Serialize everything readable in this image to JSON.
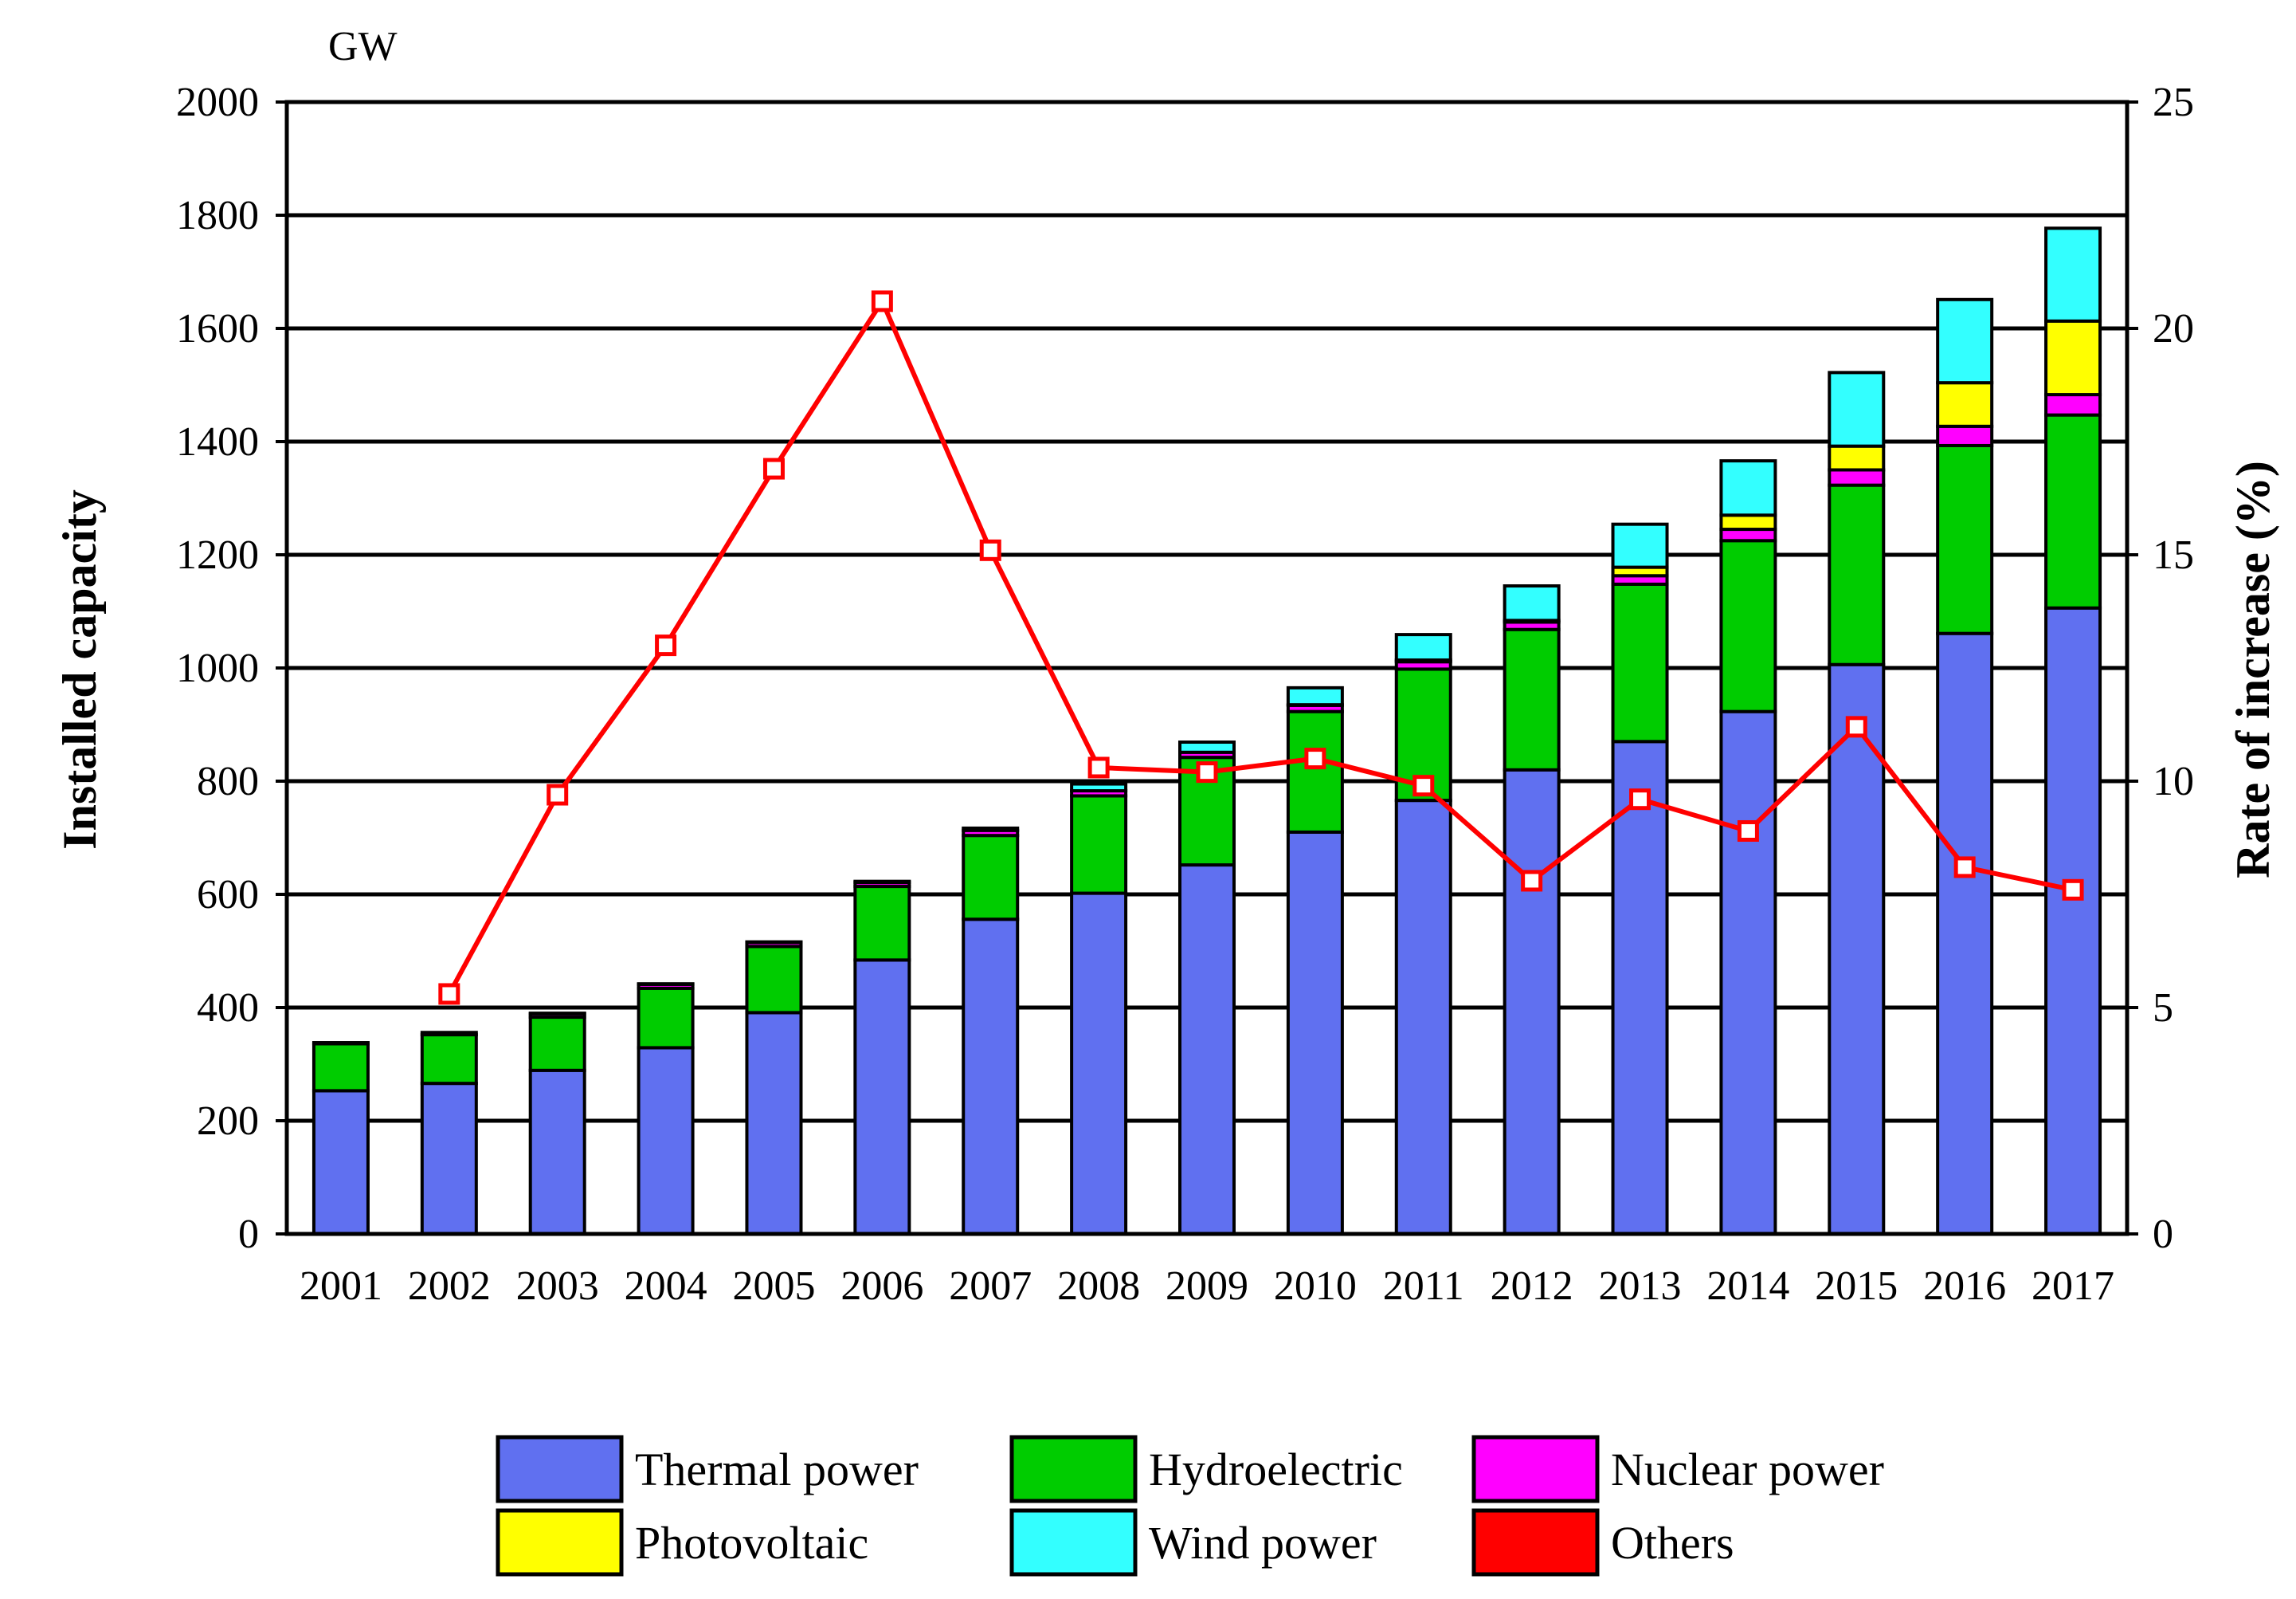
{
  "chart_data": {
    "type": "bar",
    "stacked": true,
    "unit_label": "GW",
    "ylabel": "Installed capacity",
    "y2label": "Rate of increase (%)",
    "ylim": [
      0,
      2000
    ],
    "y_ticks": [
      0,
      200,
      400,
      600,
      800,
      1000,
      1200,
      1400,
      1600,
      1800,
      2000
    ],
    "y2lim": [
      0,
      25
    ],
    "y2_ticks": [
      0,
      5,
      10,
      15,
      20,
      25
    ],
    "grid": true,
    "legend_position": "bottom",
    "categories": [
      "2001",
      "2002",
      "2003",
      "2004",
      "2005",
      "2006",
      "2007",
      "2008",
      "2009",
      "2010",
      "2011",
      "2012",
      "2013",
      "2014",
      "2015",
      "2016",
      "2017"
    ],
    "series": [
      {
        "name": "Thermal power",
        "color": "#6070F0",
        "values": [
          253,
          266,
          289,
          329,
          391,
          484,
          556,
          602,
          652,
          710,
          766,
          820,
          870,
          923,
          1006,
          1061,
          1106
        ]
      },
      {
        "name": "Hydroelectric",
        "color": "#00CC00",
        "values": [
          83,
          86,
          94,
          105,
          117,
          130,
          148,
          172,
          190,
          213,
          232,
          248,
          278,
          302,
          317,
          332,
          341
        ]
      },
      {
        "name": "Nuclear power",
        "color": "#FF00FF",
        "values": [
          2,
          4,
          6,
          7,
          7,
          7,
          9,
          9,
          9,
          11,
          13,
          13,
          15,
          20,
          27,
          34,
          36
        ]
      },
      {
        "name": "Photovoltaic",
        "color": "#FFFF00",
        "values": [
          0,
          0,
          0,
          0,
          0,
          0,
          0,
          0,
          0,
          1,
          3,
          3,
          15,
          25,
          42,
          77,
          130
        ]
      },
      {
        "name": "Wind power",
        "color": "#33FFFF",
        "values": [
          0,
          0,
          1,
          1,
          1,
          2,
          4,
          12,
          18,
          30,
          45,
          61,
          76,
          96,
          130,
          147,
          164
        ]
      },
      {
        "name": "Others",
        "color": "#FF0000",
        "values": [
          0,
          0,
          0,
          0,
          0,
          0,
          0,
          0,
          0,
          0,
          0,
          0,
          0,
          0,
          0,
          0,
          0
        ]
      }
    ],
    "line_series": {
      "name": "Rate of increase (%)",
      "color": "#FF0000",
      "axis": "right",
      "values": [
        null,
        5.3,
        9.7,
        13.0,
        16.9,
        20.6,
        15.1,
        10.3,
        10.2,
        10.5,
        9.9,
        7.8,
        9.6,
        8.9,
        11.2,
        8.1,
        7.6
      ]
    },
    "legend_order": [
      "Thermal power",
      "Hydroelectric",
      "Nuclear power",
      "Photovoltaic",
      "Wind power",
      "Others"
    ]
  }
}
